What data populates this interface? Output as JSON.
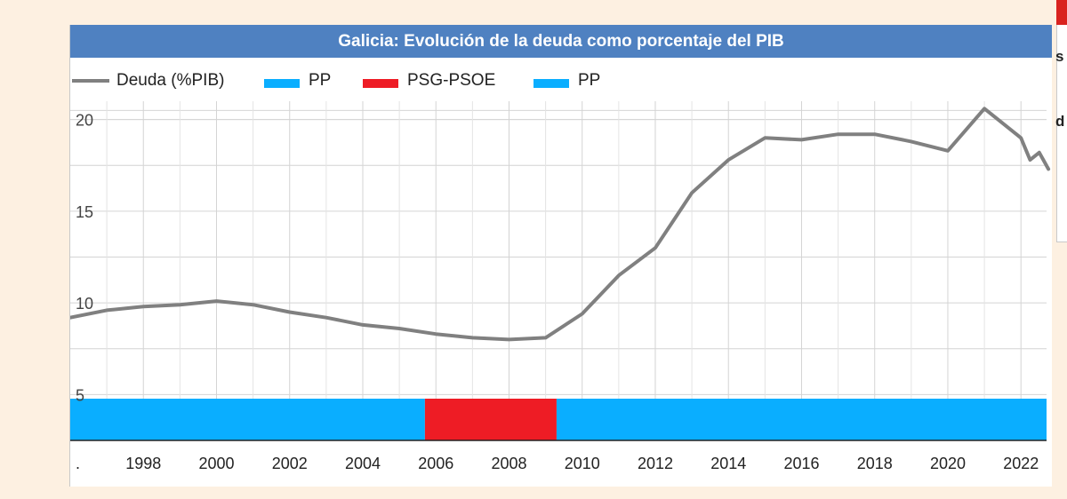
{
  "chart_data": {
    "type": "line",
    "title": "Galicia: Evolución de la deuda como porcentaje del PIB",
    "legend": [
      {
        "label": "Deuda (%PIB)",
        "color": "#808080",
        "kind": "line"
      },
      {
        "label": "PP",
        "color": "#0aaeff",
        "kind": "box"
      },
      {
        "label": "PSG-PSOE",
        "color": "#ee1c25",
        "kind": "box"
      },
      {
        "label": "PP",
        "color": "#0aaeff",
        "kind": "box"
      }
    ],
    "x_ticks": [
      "1998",
      "2000",
      "2002",
      "2004",
      "2006",
      "2008",
      "2010",
      "2012",
      "2014",
      "2016",
      "2018",
      "2020",
      "2022"
    ],
    "x_tick_values": [
      1998,
      2000,
      2002,
      2004,
      2006,
      2008,
      2010,
      2012,
      2014,
      2016,
      2018,
      2020,
      2022
    ],
    "first_x_label": ".",
    "y_ticks": [
      "5",
      "10",
      "15",
      "20"
    ],
    "y_tick_values": [
      5,
      10,
      15,
      20
    ],
    "xlim": [
      1996,
      2022.7
    ],
    "ylim": [
      2.5,
      21.0
    ],
    "grid": true,
    "legend_position": "top-left",
    "series": [
      {
        "name": "Deuda (%PIB)",
        "color": "#808080",
        "x": [
          1996.0,
          1997.0,
          1998.0,
          1999.0,
          2000.0,
          2001.0,
          2002.0,
          2003.0,
          2004.0,
          2005.0,
          2006.0,
          2007.0,
          2008.0,
          2009.0,
          2010.0,
          2011.0,
          2012.0,
          2013.0,
          2014.0,
          2015.0,
          2016.0,
          2017.0,
          2018.0,
          2019.0,
          2020.0,
          2021.0,
          2022.0,
          2022.25,
          2022.5,
          2022.75
        ],
        "y": [
          9.2,
          9.6,
          9.8,
          9.9,
          10.1,
          9.9,
          9.5,
          9.2,
          8.8,
          8.6,
          8.3,
          8.1,
          8.0,
          8.1,
          9.4,
          11.5,
          13.0,
          16.0,
          17.8,
          19.0,
          18.9,
          19.2,
          19.2,
          18.8,
          18.3,
          20.6,
          19.0,
          17.8,
          18.2,
          17.3
        ]
      }
    ],
    "government_bands": [
      {
        "party": "PP",
        "start": 1996.0,
        "end": 2005.7,
        "color": "#0aaeff"
      },
      {
        "party": "PSG-PSOE",
        "start": 2005.7,
        "end": 2009.3,
        "color": "#ee1c25"
      },
      {
        "party": "PP",
        "start": 2009.3,
        "end": 2022.7,
        "color": "#0aaeff"
      }
    ]
  },
  "side_panel": {
    "letter_top": "s",
    "letter_bottom": "d"
  }
}
